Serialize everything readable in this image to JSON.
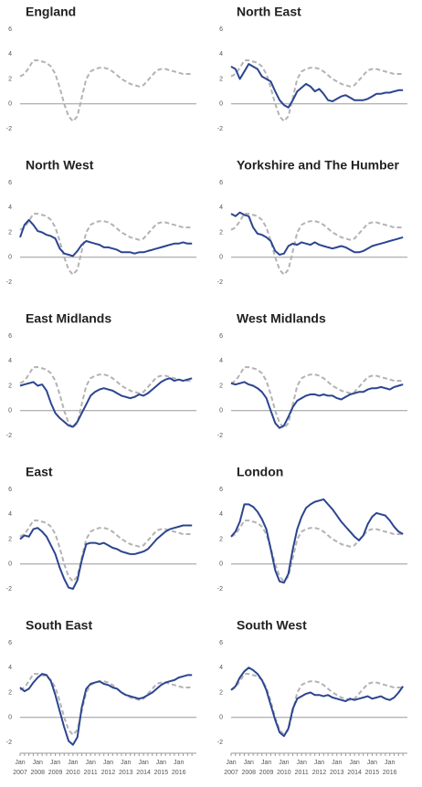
{
  "chart_data": [
    {
      "type": "line",
      "title": "England",
      "ylim": [
        -2,
        6
      ],
      "yticks": [
        -2,
        0,
        2,
        4,
        6
      ],
      "zero_line": true,
      "series": [
        {
          "color": "#b3b3b3",
          "dashed": true,
          "values": [
            2.2,
            2.4,
            2.9,
            3.5,
            3.5,
            3.4,
            3.3,
            3.0,
            2.4,
            1.3,
            0.0,
            -1.0,
            -1.4,
            -1.0,
            0.5,
            2.0,
            2.6,
            2.8,
            2.9,
            2.9,
            2.8,
            2.6,
            2.3,
            2.0,
            1.8,
            1.6,
            1.5,
            1.4,
            1.5,
            1.9,
            2.3,
            2.7,
            2.8,
            2.8,
            2.7,
            2.6,
            2.5,
            2.4,
            2.4,
            2.4
          ]
        }
      ]
    },
    {
      "type": "line",
      "title": "North East",
      "ylim": [
        -2,
        6
      ],
      "yticks": [
        -2,
        0,
        2,
        4,
        6
      ],
      "zero_line": true,
      "series": [
        {
          "color": "#b3b3b3",
          "dashed": true,
          "values": [
            2.2,
            2.4,
            2.9,
            3.5,
            3.5,
            3.4,
            3.3,
            3.0,
            2.4,
            1.3,
            0.0,
            -1.0,
            -1.4,
            -1.0,
            0.5,
            2.0,
            2.6,
            2.8,
            2.9,
            2.9,
            2.8,
            2.6,
            2.3,
            2.0,
            1.8,
            1.6,
            1.5,
            1.4,
            1.5,
            1.9,
            2.3,
            2.7,
            2.8,
            2.8,
            2.7,
            2.6,
            2.5,
            2.4,
            2.4,
            2.4
          ]
        },
        {
          "color": "#2b4590",
          "dashed": false,
          "values": [
            3.0,
            2.8,
            2.0,
            2.6,
            3.2,
            3.0,
            2.8,
            2.2,
            2.0,
            1.8,
            1.0,
            0.3,
            -0.1,
            -0.3,
            0.3,
            1.0,
            1.3,
            1.6,
            1.4,
            1.0,
            1.2,
            0.8,
            0.3,
            0.2,
            0.4,
            0.6,
            0.7,
            0.5,
            0.3,
            0.3,
            0.3,
            0.4,
            0.6,
            0.8,
            0.8,
            0.9,
            0.9,
            1.0,
            1.1,
            1.1
          ]
        }
      ]
    },
    {
      "type": "line",
      "title": "North West",
      "ylim": [
        -2,
        6
      ],
      "yticks": [
        -2,
        0,
        2,
        4,
        6
      ],
      "zero_line": true,
      "series": [
        {
          "color": "#b3b3b3",
          "dashed": true,
          "values": [
            2.2,
            2.4,
            2.9,
            3.5,
            3.5,
            3.4,
            3.3,
            3.0,
            2.4,
            1.3,
            0.0,
            -1.0,
            -1.4,
            -1.0,
            0.5,
            2.0,
            2.6,
            2.8,
            2.9,
            2.9,
            2.8,
            2.6,
            2.3,
            2.0,
            1.8,
            1.6,
            1.5,
            1.4,
            1.5,
            1.9,
            2.3,
            2.7,
            2.8,
            2.8,
            2.7,
            2.6,
            2.5,
            2.4,
            2.4,
            2.4
          ]
        },
        {
          "color": "#2b4590",
          "dashed": false,
          "values": [
            1.6,
            2.6,
            3.0,
            2.6,
            2.1,
            2.0,
            1.8,
            1.7,
            1.5,
            0.7,
            0.3,
            0.2,
            0.1,
            0.5,
            1.0,
            1.3,
            1.2,
            1.1,
            1.0,
            0.8,
            0.8,
            0.7,
            0.6,
            0.4,
            0.4,
            0.4,
            0.3,
            0.4,
            0.4,
            0.5,
            0.6,
            0.7,
            0.8,
            0.9,
            1.0,
            1.1,
            1.1,
            1.2,
            1.1,
            1.1
          ]
        }
      ]
    },
    {
      "type": "line",
      "title": "Yorkshire and The Humber",
      "ylim": [
        -2,
        6
      ],
      "yticks": [
        -2,
        0,
        2,
        4,
        6
      ],
      "zero_line": true,
      "series": [
        {
          "color": "#b3b3b3",
          "dashed": true,
          "values": [
            2.2,
            2.4,
            2.9,
            3.5,
            3.5,
            3.4,
            3.3,
            3.0,
            2.4,
            1.3,
            0.0,
            -1.0,
            -1.4,
            -1.0,
            0.5,
            2.0,
            2.6,
            2.8,
            2.9,
            2.9,
            2.8,
            2.6,
            2.3,
            2.0,
            1.8,
            1.6,
            1.5,
            1.4,
            1.5,
            1.9,
            2.3,
            2.7,
            2.8,
            2.8,
            2.7,
            2.6,
            2.5,
            2.4,
            2.4,
            2.4
          ]
        },
        {
          "color": "#2b4590",
          "dashed": false,
          "values": [
            3.5,
            3.3,
            3.6,
            3.4,
            3.3,
            2.4,
            1.9,
            1.8,
            1.6,
            1.3,
            0.5,
            0.2,
            0.3,
            0.9,
            1.1,
            1.0,
            1.2,
            1.1,
            1.0,
            1.2,
            1.0,
            0.9,
            0.8,
            0.7,
            0.8,
            0.9,
            0.8,
            0.6,
            0.4,
            0.4,
            0.5,
            0.7,
            0.9,
            1.0,
            1.1,
            1.2,
            1.3,
            1.4,
            1.5,
            1.6
          ]
        }
      ]
    },
    {
      "type": "line",
      "title": "East Midlands",
      "ylim": [
        -2,
        6
      ],
      "yticks": [
        -2,
        0,
        2,
        4,
        6
      ],
      "zero_line": true,
      "series": [
        {
          "color": "#b3b3b3",
          "dashed": true,
          "values": [
            2.2,
            2.4,
            2.9,
            3.5,
            3.5,
            3.4,
            3.3,
            3.0,
            2.4,
            1.3,
            0.0,
            -1.0,
            -1.4,
            -1.0,
            0.5,
            2.0,
            2.6,
            2.8,
            2.9,
            2.9,
            2.8,
            2.6,
            2.3,
            2.0,
            1.8,
            1.6,
            1.5,
            1.4,
            1.5,
            1.9,
            2.3,
            2.7,
            2.8,
            2.8,
            2.7,
            2.6,
            2.5,
            2.4,
            2.4,
            2.4
          ]
        },
        {
          "color": "#2b4590",
          "dashed": false,
          "values": [
            2.0,
            2.1,
            2.2,
            2.3,
            2.0,
            2.1,
            1.6,
            0.6,
            -0.2,
            -0.6,
            -0.9,
            -1.2,
            -1.3,
            -0.9,
            -0.2,
            0.5,
            1.2,
            1.5,
            1.7,
            1.8,
            1.7,
            1.6,
            1.4,
            1.2,
            1.1,
            1.0,
            1.1,
            1.3,
            1.2,
            1.4,
            1.7,
            2.0,
            2.3,
            2.5,
            2.6,
            2.4,
            2.5,
            2.4,
            2.5,
            2.6
          ]
        }
      ]
    },
    {
      "type": "line",
      "title": "West Midlands",
      "ylim": [
        -2,
        6
      ],
      "yticks": [
        -2,
        0,
        2,
        4,
        6
      ],
      "zero_line": true,
      "series": [
        {
          "color": "#b3b3b3",
          "dashed": true,
          "values": [
            2.2,
            2.4,
            2.9,
            3.5,
            3.5,
            3.4,
            3.3,
            3.0,
            2.4,
            1.3,
            0.0,
            -1.0,
            -1.4,
            -1.0,
            0.5,
            2.0,
            2.6,
            2.8,
            2.9,
            2.9,
            2.8,
            2.6,
            2.3,
            2.0,
            1.8,
            1.6,
            1.5,
            1.4,
            1.5,
            1.9,
            2.3,
            2.7,
            2.8,
            2.8,
            2.7,
            2.6,
            2.5,
            2.4,
            2.4,
            2.4
          ]
        },
        {
          "color": "#2b4590",
          "dashed": false,
          "values": [
            2.2,
            2.1,
            2.2,
            2.3,
            2.1,
            2.0,
            1.8,
            1.5,
            1.0,
            0.0,
            -1.0,
            -1.4,
            -1.2,
            -0.5,
            0.3,
            0.8,
            1.0,
            1.2,
            1.3,
            1.3,
            1.2,
            1.3,
            1.2,
            1.2,
            1.0,
            0.9,
            1.1,
            1.3,
            1.4,
            1.5,
            1.5,
            1.7,
            1.8,
            1.8,
            1.9,
            1.8,
            1.7,
            1.9,
            2.0,
            2.1
          ]
        }
      ]
    },
    {
      "type": "line",
      "title": "East",
      "ylim": [
        -2,
        6
      ],
      "yticks": [
        -2,
        0,
        2,
        4,
        6
      ],
      "zero_line": true,
      "series": [
        {
          "color": "#b3b3b3",
          "dashed": true,
          "values": [
            2.2,
            2.4,
            2.9,
            3.5,
            3.5,
            3.4,
            3.3,
            3.0,
            2.4,
            1.3,
            0.0,
            -1.0,
            -1.4,
            -1.0,
            0.5,
            2.0,
            2.6,
            2.8,
            2.9,
            2.9,
            2.8,
            2.6,
            2.3,
            2.0,
            1.8,
            1.6,
            1.5,
            1.4,
            1.5,
            1.9,
            2.3,
            2.7,
            2.8,
            2.8,
            2.7,
            2.6,
            2.5,
            2.4,
            2.4,
            2.4
          ]
        },
        {
          "color": "#2b4590",
          "dashed": false,
          "values": [
            2.0,
            2.3,
            2.2,
            2.8,
            2.9,
            2.6,
            2.2,
            1.5,
            0.8,
            -0.3,
            -1.2,
            -1.9,
            -2.0,
            -1.3,
            0.3,
            1.6,
            1.7,
            1.7,
            1.6,
            1.7,
            1.5,
            1.3,
            1.2,
            1.0,
            0.9,
            0.8,
            0.8,
            0.9,
            1.0,
            1.2,
            1.6,
            2.0,
            2.3,
            2.6,
            2.8,
            2.9,
            3.0,
            3.1,
            3.1,
            3.1
          ]
        }
      ]
    },
    {
      "type": "line",
      "title": "London",
      "ylim": [
        -2,
        6
      ],
      "yticks": [
        -2,
        0,
        2,
        4,
        6
      ],
      "zero_line": true,
      "series": [
        {
          "color": "#b3b3b3",
          "dashed": true,
          "values": [
            2.2,
            2.4,
            2.9,
            3.5,
            3.5,
            3.4,
            3.3,
            3.0,
            2.4,
            1.3,
            0.0,
            -1.0,
            -1.4,
            -1.0,
            0.5,
            2.0,
            2.6,
            2.8,
            2.9,
            2.9,
            2.8,
            2.6,
            2.3,
            2.0,
            1.8,
            1.6,
            1.5,
            1.4,
            1.5,
            1.9,
            2.3,
            2.7,
            2.8,
            2.8,
            2.7,
            2.6,
            2.5,
            2.4,
            2.4,
            2.4
          ]
        },
        {
          "color": "#2b4590",
          "dashed": false,
          "values": [
            2.2,
            2.6,
            3.4,
            4.8,
            4.8,
            4.6,
            4.2,
            3.6,
            2.8,
            1.2,
            -0.5,
            -1.4,
            -1.5,
            -0.8,
            1.2,
            2.8,
            3.8,
            4.5,
            4.8,
            5.0,
            5.1,
            5.2,
            4.8,
            4.4,
            3.9,
            3.4,
            3.0,
            2.6,
            2.2,
            1.9,
            2.3,
            3.2,
            3.8,
            4.1,
            4.0,
            3.9,
            3.5,
            3.0,
            2.6,
            2.4
          ]
        }
      ]
    },
    {
      "type": "line",
      "title": "South East",
      "ylim": [
        -2,
        6
      ],
      "yticks": [
        -2,
        0,
        2,
        4,
        6
      ],
      "zero_line": true,
      "categories": [
        "Jan 2007",
        null,
        null,
        null,
        "Jan 2008",
        null,
        null,
        null,
        "Jan 2009",
        null,
        null,
        null,
        "Jan 2010",
        null,
        null,
        null,
        "Jan 2011",
        null,
        null,
        null,
        "Jan 2012",
        null,
        null,
        null,
        "Jan 2013",
        null,
        null,
        null,
        "Jan 2014",
        null,
        null,
        null,
        "Jan 2015",
        null,
        null,
        null,
        "Jan 2016",
        null,
        null,
        null
      ],
      "series": [
        {
          "color": "#b3b3b3",
          "dashed": true,
          "values": [
            2.2,
            2.4,
            2.9,
            3.5,
            3.5,
            3.4,
            3.3,
            3.0,
            2.4,
            1.3,
            0.0,
            -1.0,
            -1.4,
            -1.0,
            0.5,
            2.0,
            2.6,
            2.8,
            2.9,
            2.9,
            2.8,
            2.6,
            2.3,
            2.0,
            1.8,
            1.6,
            1.5,
            1.4,
            1.5,
            1.9,
            2.3,
            2.7,
            2.8,
            2.8,
            2.7,
            2.6,
            2.5,
            2.4,
            2.4,
            2.4
          ]
        },
        {
          "color": "#2b4590",
          "dashed": false,
          "values": [
            2.4,
            2.1,
            2.3,
            2.8,
            3.2,
            3.5,
            3.4,
            2.9,
            1.8,
            0.5,
            -0.8,
            -1.9,
            -2.2,
            -1.6,
            0.8,
            2.3,
            2.7,
            2.8,
            2.9,
            2.7,
            2.6,
            2.4,
            2.3,
            2.0,
            1.8,
            1.7,
            1.6,
            1.5,
            1.6,
            1.8,
            2.0,
            2.3,
            2.6,
            2.8,
            2.9,
            3.0,
            3.2,
            3.3,
            3.4,
            3.4
          ]
        }
      ]
    },
    {
      "type": "line",
      "title": "South West",
      "ylim": [
        -2,
        6
      ],
      "yticks": [
        -2,
        0,
        2,
        4,
        6
      ],
      "zero_line": true,
      "categories": [
        "Jan 2007",
        null,
        null,
        null,
        "Jan 2008",
        null,
        null,
        null,
        "Jan 2009",
        null,
        null,
        null,
        "Jan 2010",
        null,
        null,
        null,
        "Jan 2011",
        null,
        null,
        null,
        "Jan 2012",
        null,
        null,
        null,
        "Jan 2013",
        null,
        null,
        null,
        "Jan 2014",
        null,
        null,
        null,
        "Jan 2015",
        null,
        null,
        null,
        "Jan 2016",
        null,
        null,
        null
      ],
      "series": [
        {
          "color": "#b3b3b3",
          "dashed": true,
          "values": [
            2.2,
            2.4,
            2.9,
            3.5,
            3.5,
            3.4,
            3.3,
            3.0,
            2.4,
            1.3,
            0.0,
            -1.0,
            -1.4,
            -1.0,
            0.5,
            2.0,
            2.6,
            2.8,
            2.9,
            2.9,
            2.8,
            2.6,
            2.3,
            2.0,
            1.8,
            1.6,
            1.5,
            1.4,
            1.5,
            1.9,
            2.3,
            2.7,
            2.8,
            2.8,
            2.7,
            2.6,
            2.5,
            2.4,
            2.4,
            2.4
          ]
        },
        {
          "color": "#2b4590",
          "dashed": false,
          "values": [
            2.2,
            2.5,
            3.2,
            3.7,
            4.0,
            3.8,
            3.5,
            3.0,
            2.2,
            1.0,
            -0.2,
            -1.2,
            -1.5,
            -0.9,
            0.7,
            1.5,
            1.7,
            1.9,
            2.0,
            1.8,
            1.8,
            1.7,
            1.8,
            1.6,
            1.5,
            1.4,
            1.3,
            1.5,
            1.4,
            1.5,
            1.6,
            1.7,
            1.5,
            1.6,
            1.7,
            1.5,
            1.4,
            1.6,
            2.0,
            2.5
          ]
        }
      ]
    }
  ]
}
